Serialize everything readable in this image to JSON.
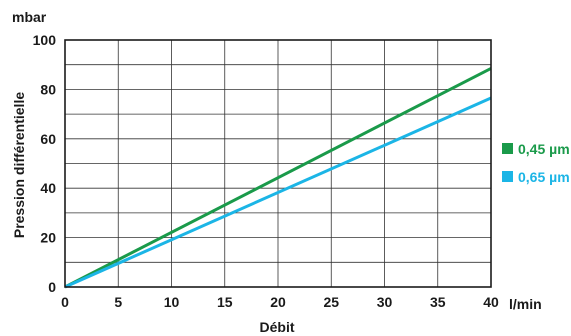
{
  "chart_data": {
    "type": "line",
    "title": "",
    "xlabel": "Débit",
    "ylabel": "Pression différentielle",
    "x_unit": "l/min",
    "y_unit": "mbar",
    "xlim": [
      0,
      40
    ],
    "ylim": [
      0,
      100
    ],
    "x_ticks": [
      "0",
      "5",
      "10",
      "15",
      "20",
      "25",
      "30",
      "35",
      "40"
    ],
    "y_ticks": [
      "0",
      "20",
      "40",
      "60",
      "80",
      "100"
    ],
    "x_grid_values": [
      0,
      5,
      10,
      15,
      20,
      25,
      30,
      35,
      40
    ],
    "y_grid_values": [
      0,
      10,
      20,
      30,
      40,
      50,
      60,
      70,
      80,
      90,
      100
    ],
    "grid": true,
    "legend_position": "right",
    "series": [
      {
        "name": "0,45 µm",
        "color": "#1a9a4a",
        "x": [
          0,
          40
        ],
        "y": [
          0,
          88.5
        ]
      },
      {
        "name": "0,65 µm",
        "color": "#1bb5e6",
        "x": [
          0,
          40
        ],
        "y": [
          0,
          76.5
        ]
      }
    ]
  }
}
